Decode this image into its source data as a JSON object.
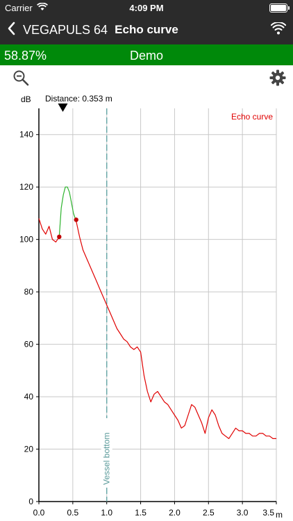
{
  "status_bar": {
    "carrier": "Carrier",
    "time": "4:09 PM"
  },
  "nav": {
    "back_label": "VEGAPULS 64",
    "title": "Echo curve"
  },
  "summary": {
    "percentage": "58.87%",
    "mode": "Demo"
  },
  "icons": {
    "zoom": "zoom-out-icon",
    "settings": "gear-icon",
    "connection": "wifi-icon",
    "back": "chevron-left-icon"
  },
  "chart_data": {
    "type": "line",
    "ylabel": "dB",
    "xlabel": "m",
    "xlim": [
      0,
      3.5
    ],
    "ylim": [
      0,
      150
    ],
    "xticks": [
      "0.0",
      "0.5",
      "1.0",
      "1.5",
      "2.0",
      "2.5",
      "3.0",
      "3.5"
    ],
    "yticks": [
      "0",
      "20",
      "40",
      "60",
      "80",
      "100",
      "120",
      "140"
    ],
    "grid": true,
    "legend": "top-right",
    "distance_label": "Distance: 0.353 m",
    "distance_value": 0.353,
    "vessel_bottom": {
      "x": 1.0,
      "label": "Vessel bottom"
    },
    "series": [
      {
        "name": "Echo curve",
        "color": "#e00000",
        "x": [
          0.0,
          0.05,
          0.1,
          0.15,
          0.2,
          0.25,
          0.3,
          0.35,
          0.4,
          0.45,
          0.5,
          0.55,
          0.6,
          0.65,
          0.7,
          0.75,
          0.8,
          0.85,
          0.9,
          0.95,
          1.0,
          1.05,
          1.1,
          1.15,
          1.2,
          1.25,
          1.3,
          1.35,
          1.4,
          1.45,
          1.5,
          1.55,
          1.6,
          1.65,
          1.7,
          1.75,
          1.8,
          1.85,
          1.9,
          1.95,
          2.0,
          2.05,
          2.1,
          2.15,
          2.2,
          2.25,
          2.3,
          2.35,
          2.4,
          2.45,
          2.5,
          2.55,
          2.6,
          2.65,
          2.7,
          2.75,
          2.8,
          2.85,
          2.9,
          2.95,
          3.0,
          3.05,
          3.1,
          3.15,
          3.2,
          3.25,
          3.3,
          3.35,
          3.4,
          3.45,
          3.5
        ],
        "y": [
          108,
          104,
          102,
          105,
          100,
          99,
          101,
          null,
          null,
          null,
          null,
          107,
          101,
          96,
          93,
          90,
          87,
          84,
          81,
          78,
          75,
          72,
          69,
          66,
          64,
          62,
          61,
          59,
          58,
          59,
          57,
          48,
          42,
          38,
          41,
          42,
          40,
          38,
          37,
          35,
          33,
          31,
          28,
          29,
          33,
          37,
          36,
          33,
          30,
          26,
          32,
          35,
          33,
          29,
          26,
          25,
          24,
          26,
          28,
          27,
          27,
          26,
          26,
          25,
          25,
          26,
          26,
          25,
          25,
          24,
          24
        ]
      },
      {
        "name": "",
        "color": "#2db32d",
        "x": [
          0.3,
          0.33,
          0.36,
          0.39,
          0.42,
          0.45,
          0.48,
          0.51,
          0.55
        ],
        "y": [
          101,
          112,
          117,
          120,
          120,
          118,
          114,
          110,
          107
        ]
      }
    ],
    "markers": [
      {
        "x": 0.3,
        "y": 101
      },
      {
        "x": 0.55,
        "y": 107.5
      }
    ]
  }
}
